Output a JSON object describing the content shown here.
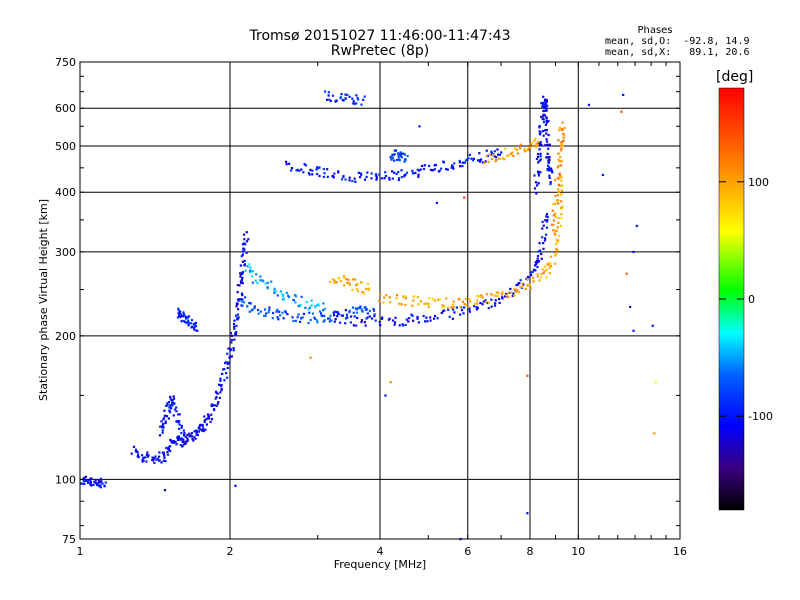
{
  "chart_data": {
    "type": "scatter",
    "title": "Tromsø 20151027 11:46:00-11:47:43",
    "subtitle": "RwPretec (8p)",
    "xlabel": "Frequency [MHz]",
    "ylabel": "Stationary phase Virtual Height [km]",
    "x_scale": "log",
    "y_scale": "log",
    "xlim": [
      1,
      16
    ],
    "ylim": [
      75,
      750
    ],
    "x_ticks": [
      "1",
      "2",
      "4",
      "6",
      "8",
      "10",
      "16"
    ],
    "x_tick_values": [
      1,
      2,
      4,
      6,
      8,
      10,
      16
    ],
    "y_ticks": [
      "75",
      "100",
      "200",
      "300",
      "400",
      "500",
      "600",
      "750"
    ],
    "y_tick_values": [
      75,
      100,
      200,
      300,
      400,
      500,
      600,
      750
    ],
    "grid": true,
    "phases_title": "Phases",
    "stats": [
      "mean, sd,O:  -92.8, 14.9",
      "mean, sd,X:   89.1, 20.6"
    ],
    "colorbar": {
      "title": "[deg]",
      "range": [
        -180,
        180
      ],
      "ticks": [
        "100",
        "0",
        "-100"
      ],
      "tick_values": [
        100,
        0,
        -100
      ]
    },
    "traces": [
      {
        "x": [
          1.0,
          1.03,
          1.06,
          1.09,
          1.12
        ],
        "y": [
          99,
          100,
          99,
          98,
          97
        ],
        "phase": -105
      },
      {
        "x": [
          1.28,
          1.33,
          1.38,
          1.43,
          1.48,
          1.52,
          1.56,
          1.6,
          1.64,
          1.68,
          1.72,
          1.76,
          1.8,
          1.84,
          1.88,
          1.92,
          1.96,
          2.0,
          2.03,
          2.06,
          2.08,
          2.1,
          2.12,
          2.14,
          2.16
        ],
        "y": [
          115,
          112,
          111,
          111,
          112,
          118,
          122,
          120,
          121,
          124,
          126,
          128,
          133,
          140,
          148,
          158,
          170,
          185,
          200,
          215,
          235,
          255,
          275,
          300,
          330
        ],
        "phase": -108
      },
      {
        "x": [
          1.45,
          1.48,
          1.5,
          1.52,
          1.55,
          1.58,
          1.62
        ],
        "y": [
          125,
          132,
          140,
          148,
          142,
          130,
          125
        ],
        "phase": -100
      },
      {
        "x": [
          1.56,
          1.6,
          1.64,
          1.68,
          1.72
        ],
        "y": [
          225,
          220,
          215,
          210,
          205
        ],
        "phase": -90
      },
      {
        "x": [
          2.1,
          2.2,
          2.35,
          2.5,
          2.7,
          2.9,
          3.1,
          3.3,
          3.5,
          3.7,
          3.9
        ],
        "y": [
          240,
          230,
          225,
          222,
          220,
          218,
          218,
          220,
          225,
          226,
          222
        ],
        "phase": -75
      },
      {
        "x": [
          2.15,
          2.25,
          2.4,
          2.55,
          2.7,
          2.9,
          3.1
        ],
        "y": [
          280,
          265,
          255,
          245,
          238,
          232,
          228
        ],
        "phase": -50
      },
      {
        "x": [
          3.2,
          3.5,
          3.8,
          4.2,
          4.6,
          5.0,
          5.5,
          6.0,
          6.5,
          7.0,
          7.5,
          7.9,
          8.2,
          8.4,
          8.55,
          8.65
        ],
        "y": [
          218,
          216,
          215,
          215,
          216,
          218,
          222,
          228,
          233,
          240,
          250,
          262,
          280,
          300,
          330,
          360
        ],
        "phase": -105
      },
      {
        "x": [
          3.2,
          3.4,
          3.6,
          3.8
        ],
        "y": [
          265,
          260,
          255,
          250
        ],
        "phase": 95
      },
      {
        "x": [
          4.0,
          4.4,
          4.8,
          5.2,
          5.6,
          6.0,
          6.5,
          7.0,
          7.5,
          8.0,
          8.5,
          8.8,
          9.0,
          9.1,
          9.2,
          9.25
        ],
        "y": [
          240,
          238,
          236,
          235,
          234,
          235,
          238,
          243,
          250,
          258,
          268,
          280,
          300,
          330,
          380,
          430
        ],
        "phase": 95
      },
      {
        "x": [
          8.2,
          8.3,
          8.4,
          8.45,
          8.5,
          8.55,
          8.6,
          8.65,
          8.7,
          8.75,
          8.8
        ],
        "y": [
          400,
          450,
          500,
          550,
          600,
          620,
          580,
          520,
          480,
          450,
          420
        ],
        "phase": -110
      },
      {
        "x": [
          8.9,
          9.0,
          9.1,
          9.2,
          9.25,
          9.3
        ],
        "y": [
          330,
          380,
          430,
          480,
          520,
          560
        ],
        "phase": 110
      },
      {
        "x": [
          2.6,
          2.8,
          3.0,
          3.2,
          3.5,
          3.8,
          4.1,
          4.4,
          4.7,
          5.0,
          5.4,
          5.8,
          6.2,
          6.6,
          7.0
        ],
        "y": [
          455,
          448,
          442,
          436,
          432,
          430,
          431,
          434,
          440,
          450,
          455,
          460,
          470,
          478,
          485
        ],
        "phase": -100
      },
      {
        "x": [
          3.1,
          3.3,
          3.5,
          3.7
        ],
        "y": [
          635,
          630,
          628,
          625
        ],
        "phase": -95
      },
      {
        "x": [
          4.2,
          4.3,
          4.4,
          4.5
        ],
        "y": [
          470,
          480,
          475,
          468
        ],
        "phase": -80
      },
      {
        "x": [
          6.5,
          7.0,
          7.5,
          8.0,
          8.3
        ],
        "y": [
          470,
          480,
          490,
          500,
          510
        ],
        "phase": 100
      }
    ],
    "singles": [
      {
        "x": 2.05,
        "y": 97,
        "phase": -105
      },
      {
        "x": 1.48,
        "y": 95,
        "phase": -105
      },
      {
        "x": 7.9,
        "y": 85,
        "phase": -105
      },
      {
        "x": 5.8,
        "y": 75,
        "phase": -105
      },
      {
        "x": 10.5,
        "y": 610,
        "phase": -105
      },
      {
        "x": 12.3,
        "y": 640,
        "phase": -105
      },
      {
        "x": 12.2,
        "y": 590,
        "phase": 140
      },
      {
        "x": 13.1,
        "y": 340,
        "phase": -100
      },
      {
        "x": 12.9,
        "y": 300,
        "phase": -100
      },
      {
        "x": 12.5,
        "y": 270,
        "phase": 130
      },
      {
        "x": 12.7,
        "y": 230,
        "phase": -100
      },
      {
        "x": 12.9,
        "y": 205,
        "phase": -100
      },
      {
        "x": 14.1,
        "y": 210,
        "phase": -100
      },
      {
        "x": 14.3,
        "y": 160,
        "phase": 60
      },
      {
        "x": 14.2,
        "y": 125,
        "phase": 105
      },
      {
        "x": 11.2,
        "y": 435,
        "phase": -100
      },
      {
        "x": 5.2,
        "y": 380,
        "phase": -100
      },
      {
        "x": 5.9,
        "y": 390,
        "phase": 150
      },
      {
        "x": 2.9,
        "y": 180,
        "phase": 110
      },
      {
        "x": 7.9,
        "y": 165,
        "phase": 140
      },
      {
        "x": 4.2,
        "y": 160,
        "phase": 110
      },
      {
        "x": 4.1,
        "y": 150,
        "phase": -100
      },
      {
        "x": 4.8,
        "y": 550,
        "phase": -100
      }
    ]
  }
}
